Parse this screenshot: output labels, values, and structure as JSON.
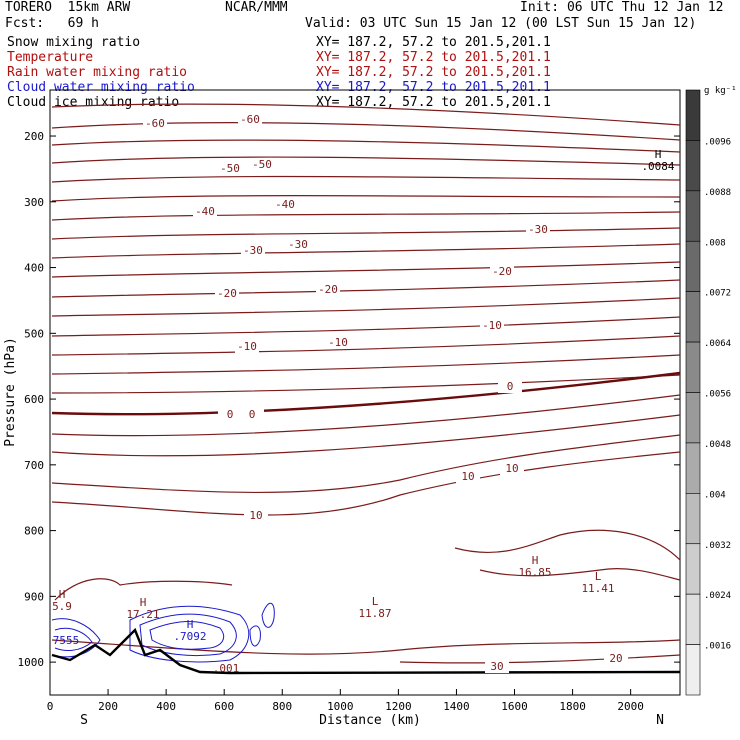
{
  "header": {
    "model": "TORERO  15km ARW",
    "org": "NCAR/MMM",
    "init": "Init: 06 UTC Thu 12 Jan 12",
    "fcst": "Fcst:   69 h",
    "valid": "Valid: 03 UTC Sun 15 Jan 12 (00 LST Sun 15 Jan 12)"
  },
  "fields": [
    {
      "name": "Snow mixing ratio",
      "xy": "XY= 187.2, 57.2 to 201.5,201.1",
      "color": "#000000"
    },
    {
      "name": "Temperature",
      "xy": "XY= 187.2, 57.2 to 201.5,201.1",
      "color": "#b01010"
    },
    {
      "name": "Rain water mixing ratio",
      "xy": "XY= 187.2, 57.2 to 201.5,201.1",
      "color": "#b01010"
    },
    {
      "name": "Cloud water mixing ratio",
      "xy": "XY= 187.2, 57.2 to 201.5,201.1",
      "color": "#1a1acc"
    },
    {
      "name": "Cloud ice mixing ratio",
      "xy": "XY= 187.2, 57.2 to 201.5,201.1",
      "color": "#000000"
    }
  ],
  "chart_data": {
    "type": "contour cross-section",
    "xlabel": "Distance (km)",
    "ylabel": "Pressure (hPa)",
    "xlim": [
      0,
      2170
    ],
    "ylim": [
      1050,
      130
    ],
    "x_ticks": [
      "0",
      "200",
      "400",
      "600",
      "800",
      "1000",
      "1200",
      "1400",
      "1600",
      "1800",
      "2000"
    ],
    "y_ticks": [
      "200",
      "300",
      "400",
      "500",
      "600",
      "700",
      "800",
      "900",
      "1000"
    ],
    "ends": {
      "left": "S",
      "right": "N"
    },
    "temperature_contour_labels": [
      "-60",
      "-60",
      "-50",
      "-50",
      "-40",
      "-40",
      "-30",
      "-30",
      "-30",
      "-20",
      "-20",
      "-20",
      "-10",
      "-10",
      "-10",
      "0",
      "0",
      "0",
      "10",
      "10",
      "10",
      "20",
      "30"
    ],
    "extrema": [
      {
        "type": "H",
        "value": ".0084"
      },
      {
        "type": "H",
        "value": "16.85"
      },
      {
        "type": "L",
        "value": "11.41"
      },
      {
        "type": "L",
        "value": "11.87"
      },
      {
        "type": "H",
        "value": "17.21"
      },
      {
        "type": "H",
        "value": "5.9"
      },
      {
        "type": "H",
        "value": ".7092"
      },
      {
        "type": "",
        "value": "7555"
      },
      {
        "type": "",
        "value": ".001"
      }
    ],
    "colorbar": {
      "unit": "g kg⁻¹",
      "ticks": [
        ".0096",
        ".0088",
        ".008",
        ".0072",
        ".0064",
        ".0056",
        ".0048",
        ".004",
        ".0032",
        ".0024",
        ".0016"
      ],
      "colors": [
        "#3a3a3a",
        "#4a4a4a",
        "#5a5a5a",
        "#6a6a6a",
        "#7a7a7a",
        "#8a8a8a",
        "#9a9a9a",
        "#ababab",
        "#bcbcbc",
        "#cdcdcd",
        "#dedede",
        "#efefef"
      ]
    }
  }
}
